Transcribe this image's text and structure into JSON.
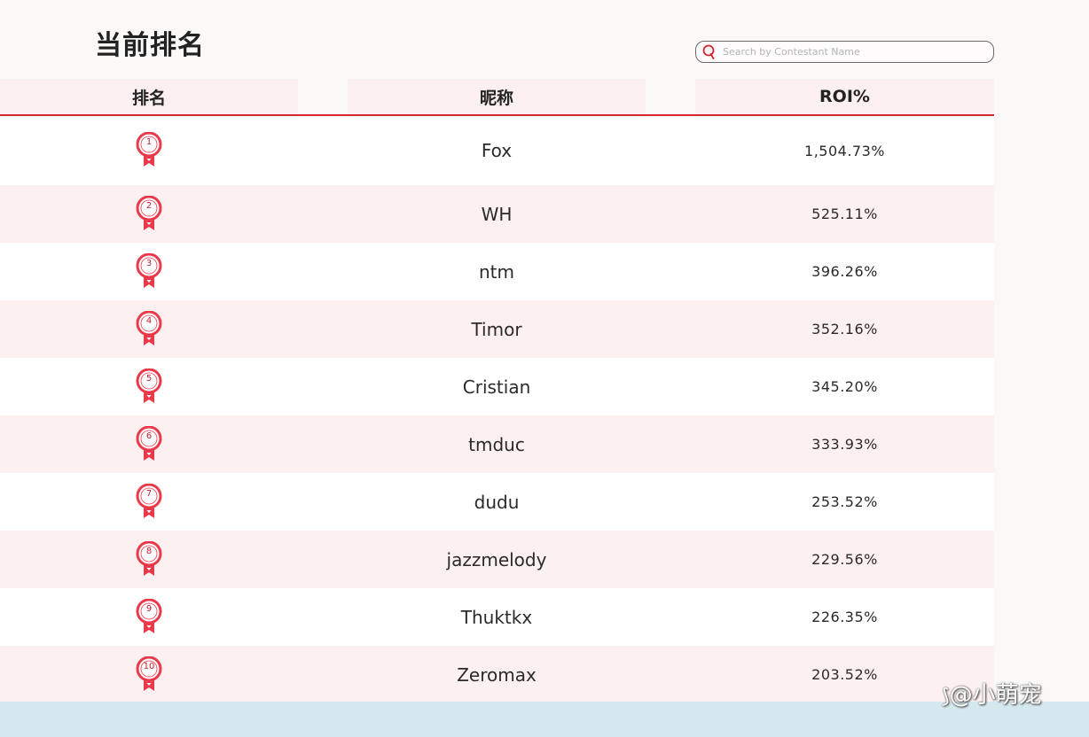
{
  "page": {
    "title": "当前排名"
  },
  "search": {
    "placeholder": "Search by Contestant Name",
    "value": ""
  },
  "table": {
    "headers": {
      "rank": "排名",
      "name": "昵称",
      "roi": "ROI%"
    },
    "rows": [
      {
        "rank": "1",
        "name": "Fox",
        "roi": "1,504.73%"
      },
      {
        "rank": "2",
        "name": "WH",
        "roi": "525.11%"
      },
      {
        "rank": "3",
        "name": "ntm",
        "roi": "396.26%"
      },
      {
        "rank": "4",
        "name": "Timor",
        "roi": "352.16%"
      },
      {
        "rank": "5",
        "name": "Cristian",
        "roi": "345.20%"
      },
      {
        "rank": "6",
        "name": "tmduc",
        "roi": "333.93%"
      },
      {
        "rank": "7",
        "name": "dudu",
        "roi": "253.52%"
      },
      {
        "rank": "8",
        "name": "jazzmelody",
        "roi": "229.56%"
      },
      {
        "rank": "9",
        "name": "Thuktkx",
        "roi": "226.35%"
      },
      {
        "rank": "10",
        "name": "Zeromax",
        "roi": "203.52%"
      }
    ]
  },
  "icons": {
    "search": "search-icon",
    "rank": "medal-ribbon-icon"
  },
  "colors": {
    "accent": "#d8242f",
    "medal": "#e83a4b",
    "header_bg": "#fcefef",
    "stripe": "#fcf0f0"
  },
  "watermark": {
    "text": "@小萌宠",
    "platform_icon": "zhihu-logo-icon"
  }
}
